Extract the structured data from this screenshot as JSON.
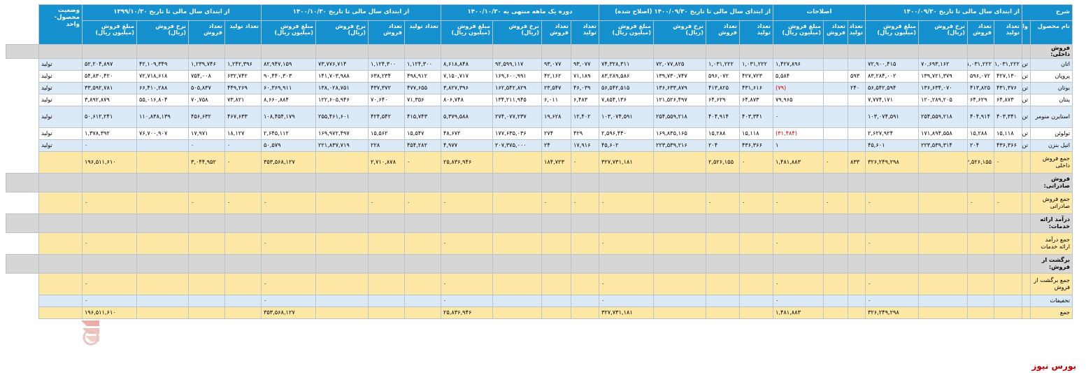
{
  "header_groups": [
    "شرح",
    "از ابتدای سال مالی تا تاریخ ۱۴۰۰/۰۹/۳۰",
    "اصلاحات",
    "از ابتدای سال مالی تا تاریخ ۱۴۰۰/۰۹/۳۰ (اصلاح شده)",
    "دوره یک ماهه منتهی به ۱۴۰۰/۱۰/۳۰",
    "از ابتدای سال مالی تا تاریخ ۱۴۰۰/۱۰/۳۰",
    "از ابتدای سال مالی تا تاریخ ۱۳۹۹/۱۰/۳۰",
    "وضعیت محصول- واحد"
  ],
  "sub_headers": [
    "نام محصول",
    "واحد",
    "تعداد تولید",
    "تعداد فروش",
    "نرخ فروش (ریال)",
    "مبلغ فروش (میلیون ریال)",
    "تعداد تولید",
    "تعداد فروش",
    "مبلغ فروش (میلیون ریال)",
    "تعداد تولید",
    "تعداد فروش",
    "نرخ فروش (ریال)",
    "مبلغ فروش (میلیون ریال)",
    "تعداد تولید",
    "تعداد فروش",
    "نرخ فروش (ریال)",
    "مبلغ فروش (میلیون ریال)",
    "تعداد تولید",
    "تعداد فروش",
    "نرخ فروش (ریال)",
    "مبلغ فروش (میلیون ریال)",
    "تعداد تولید",
    "تعداد فروش",
    "نرخ فروش (ریال)",
    "مبلغ فروش (میلیون ریال)"
  ],
  "rows": [
    {
      "style": "gray sec",
      "cells": [
        "فروش داخلی:",
        "",
        "",
        "",
        "",
        "",
        "",
        "",
        "",
        "",
        "",
        "",
        "",
        "",
        "",
        "",
        "",
        "",
        "",
        "",
        "",
        "",
        "",
        "",
        "",
        "",
        ""
      ]
    },
    {
      "style": "blue",
      "cells": [
        "اتان",
        "تن",
        "۱,۰۳۱,۲۲۲",
        "۱,۰۳۱,۲۲۲",
        "۷۰,۶۹۳,۱۶۲",
        "۷۲,۹۰۰,۴۱۵",
        "",
        "",
        "۱,۴۲۷,۸۹۶",
        "۱,۰۳۱,۲۲۲",
        "۱,۰۳۱,۲۲۲",
        "۷۲,۰۷۷,۸۲۵",
        "۷۴,۳۲۸,۳۱۱",
        "۹۳,۰۷۷",
        "۹۳,۰۷۷",
        "۹۲,۵۹۹,۱۱۷",
        "۸,۶۱۸,۸۴۸",
        "۱,۱۲۴,۳۰۰",
        "۱,۱۲۴,۳۰۰",
        "۷۳,۷۷۶,۷۱۴",
        "۸۲,۹۴۷,۱۵۹",
        "۱,۲۴۲,۳۹۶",
        "۱,۲۳۹,۷۴۶",
        "۴۲,۱۰۹,۳۴۹",
        "۵۲,۲۰۴,۸۹۷",
        "تولید"
      ]
    },
    {
      "style": "white",
      "cells": [
        "پروپان",
        "تن",
        "۴۲۷,۱۳۰",
        "۵۹۶,۰۷۲",
        "۱۳۹,۷۲۱,۳۷۹",
        "۸۳,۲۸۴,۰۰۲",
        "۵۹۳",
        "",
        "۵,۵۸۴",
        "۴۲۷,۷۲۳",
        "۵۹۶,۰۷۲",
        "۱۳۹,۷۳۰,۷۴۷",
        "۸۳,۲۸۹,۵۸۶",
        "۷۱,۱۸۹",
        "۴۲,۱۶۲",
        "۱۶۹,۶۰۰,۹۹۱",
        "۷,۱۵۰,۷۱۷",
        "۴۹۸,۹۱۲",
        "۶۳۸,۲۳۴",
        "۱۴۱,۷۰۳,۹۸۸",
        "۹۰,۴۴۰,۳۰۳",
        "۶۳۲,۷۴۲",
        "۷۵۴,۰۰۸",
        "۷۲,۷۱۸,۶۱۸",
        "۵۴,۸۳۰,۴۲۰",
        "تولید"
      ]
    },
    {
      "style": "blue",
      "cells": [
        "بوتان",
        "تن",
        "۴۳۱,۳۷۶",
        "۴۱۳,۸۲۵",
        "۱۳۶,۶۳۴,۰۷۰",
        "۵۶,۵۴۲,۵۹۴",
        "۲۴۰",
        "",
        "(۷۹)",
        "۴۳۱,۶۱۶",
        "۴۱۳,۸۲۵",
        "۱۳۶,۶۳۳,۸۷۹",
        "۵۶,۵۴۲,۵۱۵",
        "۴۶,۰۳۹",
        "۲۳,۵۴۷",
        "۱۶۲,۵۴۲,۸۲۹",
        "۳,۸۲۷,۳۹۶",
        "۴۷۷,۶۵۵",
        "۴۳۷,۳۷۲",
        "۱۳۸,۰۲۸,۷۵۱",
        "۶۰,۳۶۹,۹۱۱",
        "۴۴۹,۲۶۹",
        "۵۰۵,۸۳۷",
        "۶۶,۴۱۰,۲۸۸",
        "۳۳,۵۹۲,۷۸۱",
        "تولید"
      ]
    },
    {
      "style": "white",
      "cells": [
        "پنتان",
        "تن",
        "۶۴,۸۷۳",
        "۶۴,۶۲۹",
        "۱۲۰,۲۸۹,۲۰۵",
        "۷,۷۷۴,۱۷۱",
        "",
        "",
        "۷۹,۹۶۵",
        "۶۴,۸۷۳",
        "۶۴,۶۲۹",
        "۱۲۱,۵۲۶,۴۹۷",
        "۷,۸۵۴,۱۳۶",
        "۶,۴۸۳",
        "۶,۰۱۱",
        "۱۳۴,۲۱۱,۹۴۵",
        "۸۰۶,۷۴۸",
        "۷۱,۳۵۶",
        "۷۰,۶۴۰",
        "۱۲۲,۶۰۵,۹۴۶",
        "۸,۶۶۰,۸۸۴",
        "۷۳,۸۲۱",
        "۷۰,۷۵۸",
        "۵۵,۰۱۶,۸۰۴",
        "۳,۸۹۲,۸۷۹",
        "تولید"
      ]
    },
    {
      "style": "blue tall",
      "cells": [
        "استایرن منومر",
        "تن",
        "۴۰۳,۳۴۱",
        "۴۰۴,۹۱۴",
        "۲۵۴,۵۵۹,۲۱۸",
        "۱۰۳,۰۷۴,۵۹۱",
        "",
        "",
        "۰",
        "۴۰۳,۳۴۱",
        "۴۰۴,۹۱۴",
        "۲۵۴,۵۵۹,۲۱۸",
        "۱۰۳,۰۷۴,۵۹۱",
        "۱۲,۴۰۲",
        "۱۹,۶۲۸",
        "۲۷۴,۰۷۷,۲۳۷",
        "۵,۳۷۹,۵۸۸",
        "۴۱۵,۷۴۳",
        "۴۲۴,۵۴۲",
        "۲۵۵,۴۶۱,۶۰۱",
        "۱۰۸,۴۵۴,۱۷۹",
        "۴۶۷,۶۳۳",
        "۴۵۶,۶۳۲",
        "۱۱۰,۸۳۸,۱۳۹",
        "۵۰,۶۱۲,۲۴۱",
        "تولید"
      ]
    },
    {
      "style": "white",
      "cells": [
        "تولوئن",
        "تن",
        "۱۵,۱۱۸",
        "۱۵,۲۸۸",
        "۱۷۱,۸۹۴,۵۵۸",
        "۲,۶۲۷,۹۲۴",
        "",
        "",
        "(۳۱,۴۸۴)",
        "۱۵,۱۱۸",
        "۱۵,۲۸۸",
        "۱۶۹,۸۳۵,۱۶۵",
        "۲,۵۹۶,۴۴۰",
        "۴۲۹",
        "۲۷۴",
        "۱۷۷,۶۳۵,۰۳۶",
        "۴۸,۶۷۲",
        "۱۵,۵۴۷",
        "۱۵,۵۶۲",
        "۱۶۹,۹۷۲,۴۹۷",
        "۲,۶۴۵,۱۱۲",
        "۱۸,۱۲۷",
        "۱۷,۹۷۱",
        "۷۶,۷۰۰,۹۰۷",
        "۱,۳۷۸,۳۹۲",
        "تولید"
      ]
    },
    {
      "style": "blue",
      "cells": [
        "اتیل بنزن",
        "تن",
        "۴۳۶,۳۶۶",
        "۲۰۴",
        "۲۲۳,۵۳۹,۳۱۴",
        "۴۵,۶۰۱",
        "",
        "",
        "۱",
        "۴۳۶,۳۶۶",
        "۲۰۴",
        "۲۲۳,۵۳۹,۲۱۶",
        "۴۵,۶۰۲",
        "۱۷,۹۱۶",
        "۲۴",
        "۲۰۷,۳۷۵,۰۰۰",
        "۴,۹۷۷",
        "۴۵۴,۲۸۲",
        "۲۲۸",
        "۲۲۱,۸۳۷,۷۱۹",
        "۵۰,۵۷۹",
        "۰",
        "۰",
        "",
        "۰",
        "تولید"
      ]
    },
    {
      "style": "yellow tall",
      "cells": [
        "جمع فروش داخلی",
        "",
        "۰",
        "۲,۵۲۶,۱۵۵",
        "",
        "۳۲۶,۲۴۹,۲۹۸",
        "۸۳۳",
        "۰",
        "۱,۴۸۱,۸۸۳",
        "۰",
        "۲,۵۲۶,۱۵۵",
        "",
        "۳۲۷,۷۳۱,۱۸۱",
        "۰",
        "۱۸۴,۷۲۳",
        "",
        "۲۵,۸۳۶,۹۴۶",
        "۰",
        "۲,۷۱۰,۸۷۸",
        "",
        "۳۵۳,۵۶۸,۱۲۷",
        "۰",
        "۳,۰۴۴,۹۵۲",
        "",
        "۱۹۶,۵۱۱,۶۱۰",
        ""
      ]
    },
    {
      "style": "gray sec tall",
      "cells": [
        "فروش صادراتی:",
        "",
        "",
        "",
        "",
        "",
        "",
        "",
        "",
        "",
        "",
        "",
        "",
        "",
        "",
        "",
        "",
        "",
        "",
        "",
        "",
        "",
        "",
        "",
        "",
        "",
        ""
      ]
    },
    {
      "style": "yellow tall",
      "cells": [
        "جمع فروش صادراتی",
        "",
        "۰",
        "۰",
        "",
        "۰",
        "",
        "۰",
        "۰",
        "۰",
        "۰",
        "",
        "۰",
        "۰",
        "۰",
        "",
        "۰",
        "۰",
        "۰",
        "",
        "۰",
        "۰",
        "۰",
        "",
        "۰",
        ""
      ]
    },
    {
      "style": "gray sec tall",
      "cells": [
        "درآمد ارائه خدمات:",
        "",
        "",
        "",
        "",
        "",
        "",
        "",
        "",
        "",
        "",
        "",
        "",
        "",
        "",
        "",
        "",
        "",
        "",
        "",
        "",
        "",
        "",
        "",
        "",
        "",
        ""
      ]
    },
    {
      "style": "yellow tall",
      "cells": [
        "جمع درآمد ارائه خدمات",
        "",
        "",
        "",
        "",
        "۰",
        "",
        "",
        "۰",
        "",
        "",
        "",
        "۰",
        "",
        "",
        "",
        "۰",
        "",
        "",
        "",
        "۰",
        "",
        "",
        "",
        "۰",
        ""
      ]
    },
    {
      "style": "gray sec tall",
      "cells": [
        "برگشت از فروش:",
        "",
        "",
        "",
        "",
        "",
        "",
        "",
        "",
        "",
        "",
        "",
        "",
        "",
        "",
        "",
        "",
        "",
        "",
        "",
        "",
        "",
        "",
        "",
        "",
        "",
        ""
      ]
    },
    {
      "style": "yellow tall",
      "cells": [
        "جمع برگشت از فروش",
        "",
        "",
        "",
        "",
        "۰",
        "",
        "",
        "۰",
        "",
        "",
        "",
        "۰",
        "",
        "",
        "",
        "۰",
        "",
        "",
        "",
        "۰",
        "",
        "",
        "",
        "۰",
        ""
      ]
    },
    {
      "style": "blue",
      "cells": [
        "تخفیفات",
        "",
        "",
        "",
        "",
        "۰",
        "",
        "",
        "۰",
        "",
        "",
        "",
        "۰",
        "",
        "",
        "",
        "۰",
        "",
        "",
        "",
        "۰",
        "",
        "",
        "",
        "۰",
        ""
      ]
    },
    {
      "style": "yellow",
      "cells": [
        "جمع",
        "",
        "",
        "",
        "",
        "۳۲۶,۲۴۹,۲۹۸",
        "",
        "",
        "۱,۴۸۱,۸۸۳",
        "",
        "",
        "",
        "۳۲۷,۷۳۱,۱۸۱",
        "",
        "",
        "",
        "۲۵,۸۳۶,۹۴۶",
        "",
        "",
        "",
        "۳۵۳,۵۶۸,۱۲۷",
        "",
        "",
        "",
        "۱۹۶,۵۱۱,۶۱۰",
        ""
      ]
    }
  ],
  "watermark_text": "بورس نیوز",
  "brand_footer": "بورس نیوز",
  "colors": {
    "header": "#1591d0",
    "row_blue": "#dce9f6",
    "row_yellow": "#fde8a6",
    "row_gray": "#d6d6d6",
    "negative": "#d00000",
    "brand": "#c00000"
  }
}
